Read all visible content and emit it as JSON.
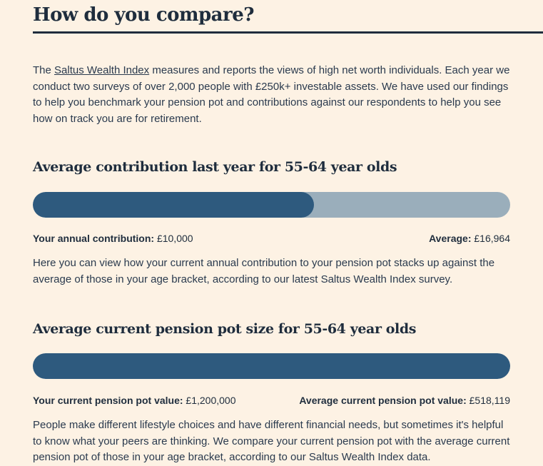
{
  "header": {
    "title": "How do you compare?"
  },
  "intro": {
    "prefix": "The ",
    "link_text": "Saltus Wealth Index",
    "suffix": " measures and reports the views of high net worth individuals. Each year we conduct two surveys of over 2,000 people with £250k+ investable assets. We have used our findings to help you benchmark your pension pot and contributions against our respondents to help you see how on track you are for retirement."
  },
  "contribution": {
    "title": "Average contribution last year for 55-64 year olds",
    "your_label": "Your annual contribution:",
    "your_value": " £10,000",
    "avg_label": "Average:",
    "avg_value": " £16,964",
    "fill_fraction": 0.589,
    "paragraph": "Here you can view how your current annual contribution to your pension pot stacks up against the average of those in your age bracket, according to our latest Saltus Wealth Index survey."
  },
  "pot": {
    "title": "Average current pension pot size for 55-64 year olds",
    "your_label": "Your current pension pot value:",
    "your_value": " £1,200,000",
    "avg_label": "Average current pension pot value:",
    "avg_value": " £518,119",
    "fill_fraction": 1.0,
    "paragraph": "People make different lifestyle choices and have different financial needs, but sometimes it's helpful to know what your peers are thinking. We compare your current pension pot with the average current pension pot of those in your age bracket, according to our Saltus Wealth Index data."
  },
  "colors": {
    "background": "#fdf2e4",
    "bar_fill": "#2e5a7e",
    "bar_track": "#9aaebb",
    "heading": "#1f2d3d"
  }
}
